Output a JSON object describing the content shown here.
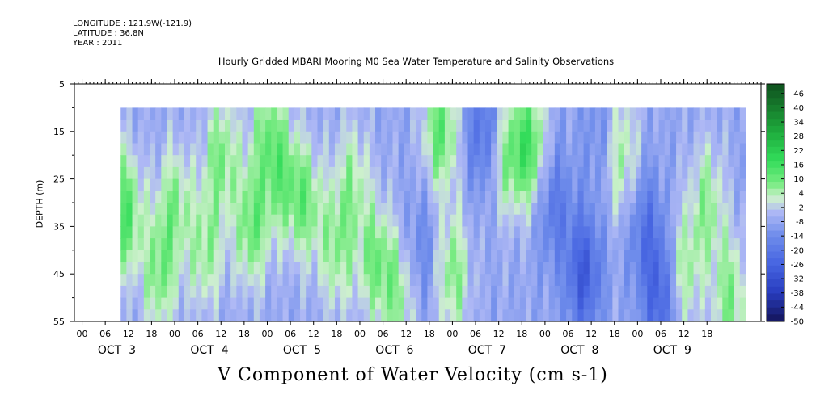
{
  "header": {
    "longitude": "LONGITUDE : 121.9W(-121.9)",
    "latitude": "LATITUDE : 36.8N",
    "year": "YEAR : 2011"
  },
  "chart_data": {
    "type": "heatmap",
    "title": "Hourly Gridded MBARI Mooring M0 Sea Water Temperature and Salinity Observations",
    "xlabel": "V Component of Water Velocity (cm s-1)",
    "ylabel": "DEPTH (m)",
    "ylim": [
      55,
      5
    ],
    "y_ticks": [
      5,
      15,
      25,
      35,
      45,
      55
    ],
    "data_depth_range": [
      10,
      55
    ],
    "x_hour_ticks": [
      "00",
      "06",
      "12",
      "18",
      "00",
      "06",
      "12",
      "18",
      "00",
      "06",
      "12",
      "18",
      "00",
      "06",
      "12",
      "18",
      "00",
      "06",
      "12",
      "18",
      "00",
      "06",
      "12",
      "18",
      "00",
      "06",
      "12",
      "18"
    ],
    "x_day_labels": [
      "OCT  3",
      "OCT  4",
      "OCT  5",
      "OCT  6",
      "OCT  7",
      "OCT  8",
      "OCT  9"
    ],
    "data_time_range_hours": [
      4,
      166
    ],
    "colorbar": {
      "labels": [
        "46",
        "40",
        "34",
        "28",
        "22",
        "16",
        "10",
        "4",
        "-2",
        "-8",
        "-14",
        "-20",
        "-26",
        "-32",
        "-38",
        "-44",
        "-50"
      ],
      "range": [
        -50,
        50
      ]
    },
    "features": [
      {
        "t": 5,
        "d": 32,
        "v": 14
      },
      {
        "t": 14,
        "d": 45,
        "v": 8
      },
      {
        "t": 18,
        "d": 30,
        "v": 6
      },
      {
        "t": 26,
        "d": 40,
        "v": 6
      },
      {
        "t": 30,
        "d": 20,
        "v": 8
      },
      {
        "t": 38,
        "d": 35,
        "v": 10
      },
      {
        "t": 42,
        "d": 15,
        "v": 6
      },
      {
        "t": 46,
        "d": 25,
        "v": 6
      },
      {
        "t": 52,
        "d": 30,
        "v": 8
      },
      {
        "t": 60,
        "d": 40,
        "v": 6
      },
      {
        "t": 64,
        "d": 25,
        "v": 4
      },
      {
        "t": 70,
        "d": 42,
        "v": 8
      },
      {
        "t": 76,
        "d": 50,
        "v": 6
      },
      {
        "t": 82,
        "d": 40,
        "v": -16
      },
      {
        "t": 87,
        "d": 15,
        "v": 12
      },
      {
        "t": 90,
        "d": 45,
        "v": 8
      },
      {
        "t": 98,
        "d": 15,
        "v": -22
      },
      {
        "t": 104,
        "d": 20,
        "v": 6
      },
      {
        "t": 110,
        "d": 18,
        "v": 14
      },
      {
        "t": 116,
        "d": 30,
        "v": -20
      },
      {
        "t": 124,
        "d": 45,
        "v": -28
      },
      {
        "t": 128,
        "d": 15,
        "v": -14
      },
      {
        "t": 134,
        "d": 20,
        "v": 6
      },
      {
        "t": 140,
        "d": 35,
        "v": -20
      },
      {
        "t": 144,
        "d": 50,
        "v": -26
      },
      {
        "t": 150,
        "d": 45,
        "v": 6
      },
      {
        "t": 156,
        "d": 30,
        "v": 6
      },
      {
        "t": 162,
        "d": 50,
        "v": 8
      }
    ]
  }
}
